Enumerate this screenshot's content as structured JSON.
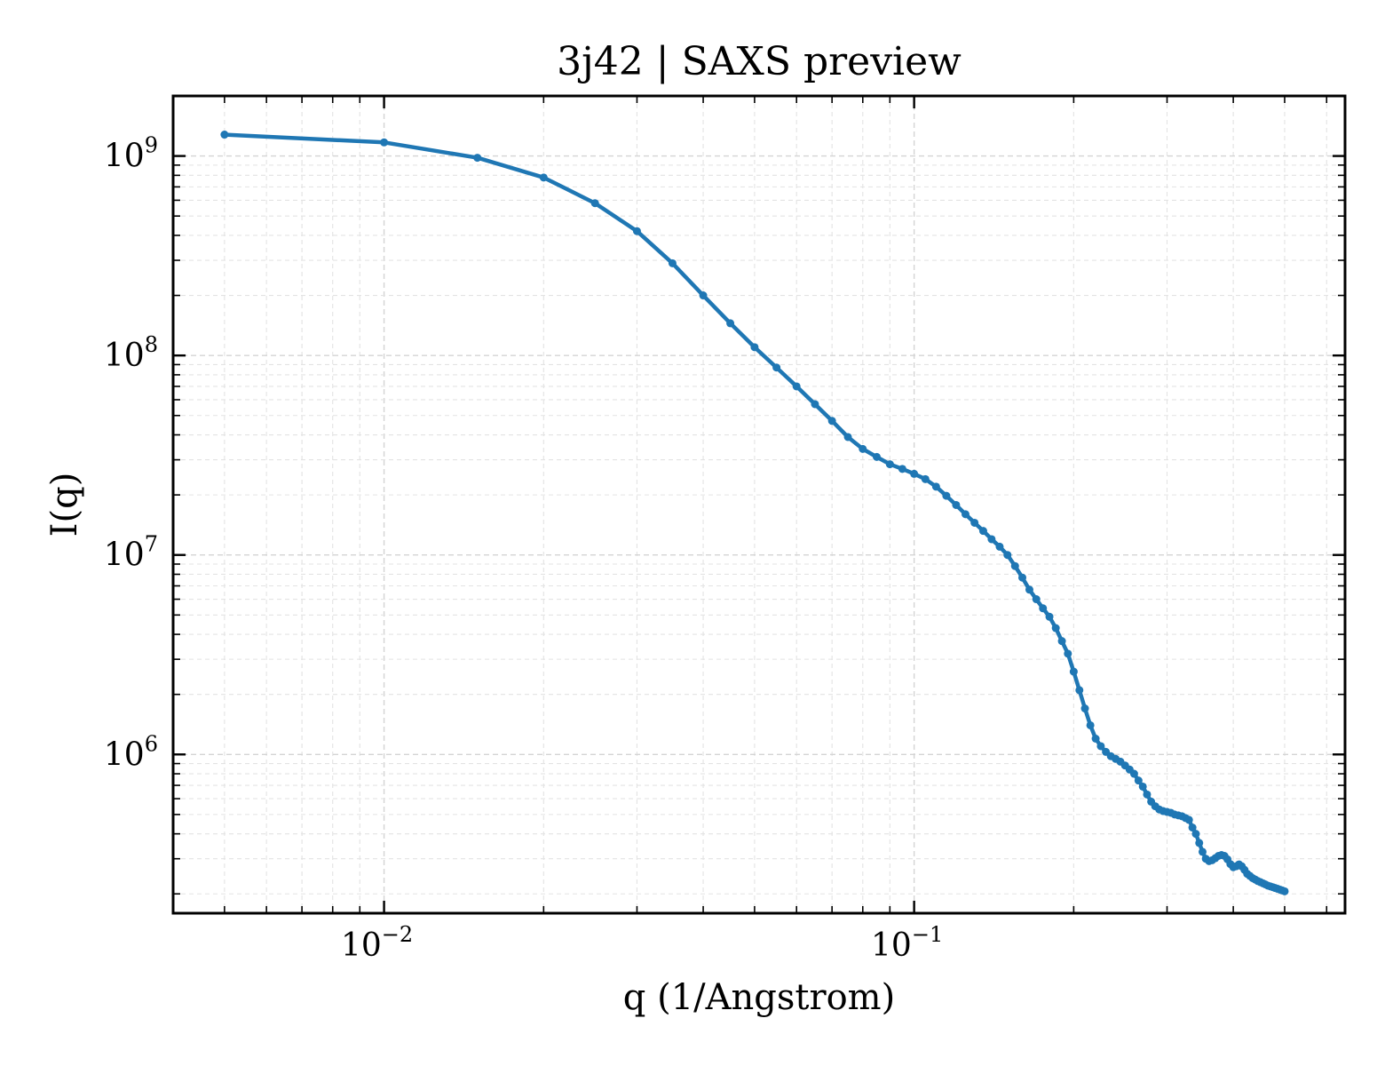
{
  "chart_data": {
    "type": "line",
    "title": "3j42 | SAXS preview",
    "xlabel": "q (1/Angstrom)",
    "ylabel": "I(q)",
    "xscale": "log",
    "yscale": "log",
    "xlim": [
      0.004,
      0.65
    ],
    "ylim": [
      160000,
      2000000000
    ],
    "xticks": [
      {
        "base": "10",
        "exp": "−2",
        "value": 0.01
      },
      {
        "base": "10",
        "exp": "−1",
        "value": 0.1
      }
    ],
    "yticks": [
      {
        "base": "10",
        "exp": "6",
        "value": 1000000
      },
      {
        "base": "10",
        "exp": "7",
        "value": 10000000
      },
      {
        "base": "10",
        "exp": "8",
        "value": 100000000
      },
      {
        "base": "10",
        "exp": "9",
        "value": 1000000000
      }
    ],
    "grid": true,
    "line_color": "#1f77b4",
    "series": [
      {
        "x": [
          0.005,
          0.01,
          0.015,
          0.02,
          0.025,
          0.03,
          0.035,
          0.04,
          0.045,
          0.05,
          0.055,
          0.06,
          0.065,
          0.07,
          0.075,
          0.08,
          0.085,
          0.09,
          0.095,
          0.1,
          0.105,
          0.11,
          0.115,
          0.12,
          0.125,
          0.13,
          0.135,
          0.14,
          0.145,
          0.15,
          0.155,
          0.16,
          0.165,
          0.17,
          0.175,
          0.18,
          0.185,
          0.19,
          0.195,
          0.2,
          0.205,
          0.21,
          0.215,
          0.22,
          0.225,
          0.23,
          0.235,
          0.24,
          0.245,
          0.25,
          0.255,
          0.26,
          0.265,
          0.27,
          0.275,
          0.28,
          0.285,
          0.29,
          0.295,
          0.3,
          0.305,
          0.31,
          0.315,
          0.32,
          0.325,
          0.33,
          0.335,
          0.34,
          0.345,
          0.35,
          0.355,
          0.36,
          0.365,
          0.37,
          0.375,
          0.38,
          0.385,
          0.39,
          0.395,
          0.4,
          0.405,
          0.41,
          0.415,
          0.42,
          0.425,
          0.43,
          0.435,
          0.44,
          0.445,
          0.45,
          0.455,
          0.46,
          0.465,
          0.47,
          0.475,
          0.48,
          0.485,
          0.49,
          0.495,
          0.5
        ],
        "y": [
          1280000000,
          1170000000,
          980000000,
          780000000,
          580000000,
          420000000,
          290000000,
          200000000,
          145000000,
          110000000,
          87000000,
          70000000,
          57000000,
          47000000,
          39000000,
          34000000,
          31000000,
          28500000,
          27000000,
          25500000,
          24000000,
          22000000,
          19800000,
          17800000,
          16000000,
          14500000,
          13200000,
          12000000,
          11000000,
          10000000,
          8800000,
          7700000,
          6700000,
          6000000,
          5400000,
          4900000,
          4300000,
          3700000,
          3200000,
          2600000,
          2100000,
          1700000,
          1400000,
          1200000,
          1100000,
          1030000,
          980000,
          950000,
          920000,
          880000,
          840000,
          800000,
          740000,
          690000,
          630000,
          580000,
          550000,
          530000,
          520000,
          515000,
          510000,
          500000,
          495000,
          490000,
          480000,
          470000,
          430000,
          400000,
          360000,
          325000,
          300000,
          292000,
          295000,
          302000,
          310000,
          313000,
          310000,
          298000,
          282000,
          272000,
          275000,
          281000,
          275000,
          264000,
          252000,
          246000,
          240000,
          236000,
          232000,
          229000,
          226000,
          223000,
          220000,
          218000,
          216000,
          214000,
          212000,
          210000,
          208000,
          206000
        ]
      }
    ]
  }
}
